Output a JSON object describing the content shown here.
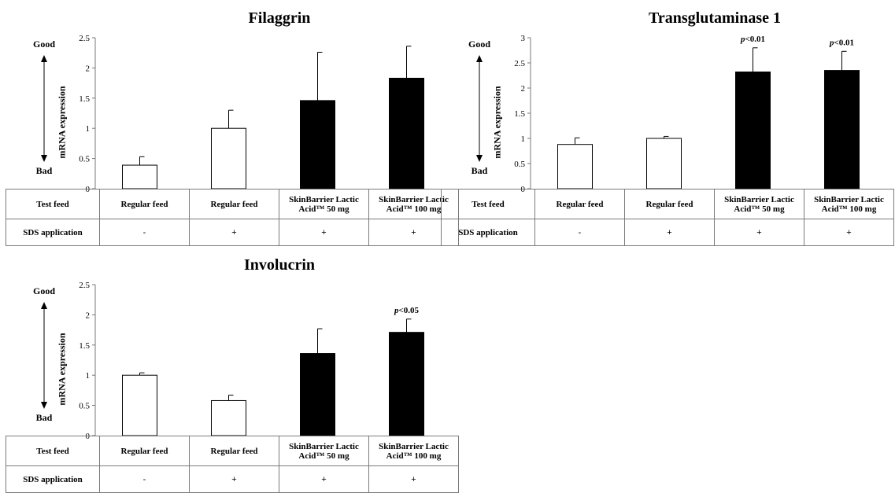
{
  "axis_side_labels": {
    "good": "Good",
    "bad": "Bad"
  },
  "table": {
    "row_labels": {
      "feed": "Test feed",
      "sds": "SDS application"
    },
    "feeds": [
      {
        "line1": "Regular feed",
        "line2": ""
      },
      {
        "line1": "Regular feed",
        "line2": ""
      },
      {
        "line1": "SkinBarrier Lactic",
        "line2": "Acid™ 50 mg"
      },
      {
        "line1": "SkinBarrier Lactic",
        "line2": "Acid™ 100 mg"
      }
    ],
    "sds": [
      "-",
      "+",
      "+",
      "+"
    ]
  },
  "colors": {
    "control_bar": "#ffffff",
    "treatment_bar": "#000000",
    "outline": "#000000"
  },
  "chart_data": [
    {
      "type": "bar",
      "title": "Filaggrin",
      "ylabel": "mRNA expression",
      "ylim": [
        0,
        2.5
      ],
      "yticks": [
        "0",
        "0.5",
        "1",
        "1.5",
        "2",
        "2.5"
      ],
      "categories": [
        "Regular feed / -",
        "Regular feed / +",
        "SkinBarrier Lactic Acid™ 50 mg / +",
        "SkinBarrier Lactic Acid™ 100 mg / +"
      ],
      "values": [
        0.39,
        1.0,
        1.46,
        1.83
      ],
      "errors": [
        0.14,
        0.3,
        0.8,
        0.53
      ],
      "fills": [
        "white",
        "white",
        "black",
        "black"
      ],
      "annotations": [
        "",
        "",
        "",
        ""
      ]
    },
    {
      "type": "bar",
      "title": "Transglutaminase 1",
      "ylabel": "mRNA expression",
      "ylim": [
        0,
        3
      ],
      "yticks": [
        "0",
        "0.5",
        "1",
        "1.5",
        "2",
        "2.5",
        "3"
      ],
      "categories": [
        "Regular feed / -",
        "Regular feed / +",
        "SkinBarrier Lactic Acid™ 50 mg / +",
        "SkinBarrier Lactic Acid™ 100 mg / +"
      ],
      "values": [
        0.88,
        1.0,
        2.32,
        2.35
      ],
      "errors": [
        0.13,
        0.04,
        0.48,
        0.38
      ],
      "fills": [
        "white",
        "white",
        "black",
        "black"
      ],
      "annotations": [
        "",
        "",
        "p<0.01",
        "p<0.01"
      ]
    },
    {
      "type": "bar",
      "title": "Involucrin",
      "ylabel": "mRNA expression",
      "ylim": [
        0,
        2.5
      ],
      "yticks": [
        "0",
        "0.5",
        "1",
        "1.5",
        "2",
        "2.5"
      ],
      "categories": [
        "Regular feed / -",
        "Regular feed / +",
        "SkinBarrier Lactic Acid™ 50 mg / +",
        "SkinBarrier Lactic Acid™ 100 mg / +"
      ],
      "values": [
        1.0,
        0.58,
        1.36,
        1.71
      ],
      "errors": [
        0.04,
        0.09,
        0.41,
        0.22
      ],
      "fills": [
        "white",
        "white",
        "black",
        "black"
      ],
      "annotations": [
        "",
        "",
        "",
        "p<0.05"
      ]
    }
  ]
}
